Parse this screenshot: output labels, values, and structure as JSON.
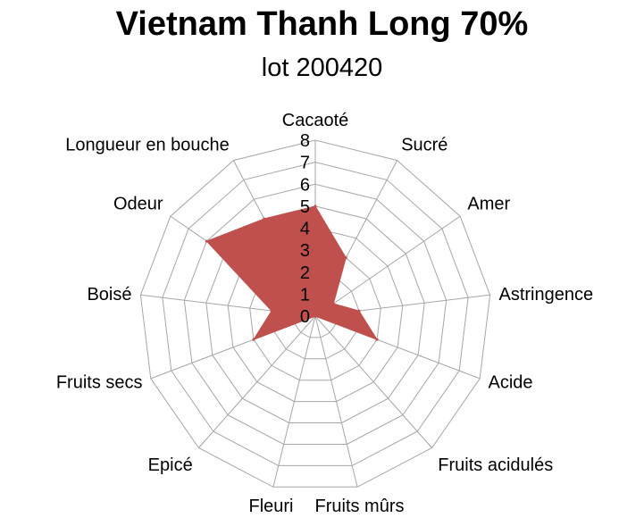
{
  "chart_data": {
    "type": "radar",
    "title": "Vietnam Thanh Long 70%",
    "subtitle": "lot 200420",
    "categories": [
      "Cacaoté",
      "Sucré",
      "Amer",
      "Astringence",
      "Acide",
      "Fruits acidulés",
      "Fruits mûrs",
      "Fleuri",
      "Epicé",
      "Fruits secs",
      "Boisé",
      "Odeur",
      "Longueur en bouche"
    ],
    "values": [
      5,
      3,
      1,
      2,
      3,
      0,
      0,
      0,
      0,
      3,
      2,
      6,
      5
    ],
    "rlim": [
      0,
      8
    ],
    "ticks": [
      "0",
      "1",
      "2",
      "3",
      "4",
      "5",
      "6",
      "7",
      "8"
    ],
    "series_color": "#c0504d",
    "grid_color": "#a6a6a6"
  }
}
